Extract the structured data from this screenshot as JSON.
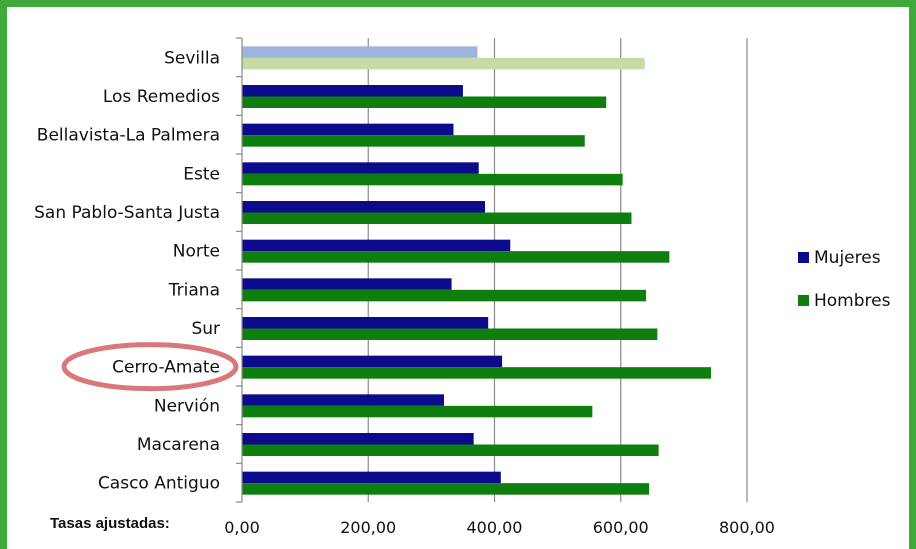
{
  "chart_data": {
    "type": "bar",
    "orientation": "horizontal",
    "categories": [
      "Sevilla",
      "Los Remedios",
      "Bellavista-La Palmera",
      "Este",
      "San Pablo-Santa Justa",
      "Norte",
      "Triana",
      "Sur",
      "Cerro-Amate",
      "Nervión",
      "Macarena",
      "Casco Antiguo"
    ],
    "series": [
      {
        "name": "Mujeres",
        "color": "#0b0b8c",
        "values": [
          373,
          350,
          335,
          375,
          385,
          425,
          332,
          390,
          412,
          320,
          367,
          410
        ]
      },
      {
        "name": "Hombres",
        "color": "#0e7f0e",
        "values": [
          638,
          577,
          543,
          603,
          617,
          677,
          640,
          658,
          743,
          555,
          660,
          645
        ]
      }
    ],
    "highlight_first_category_colors": {
      "Mujeres": "#9db4dc",
      "Hombres": "#c6dba6"
    },
    "highlighted_category": "Cerro-Amate",
    "highlight_color": "#d9787a",
    "xlim": [
      0,
      800
    ],
    "xticks": [
      0,
      200,
      400,
      600,
      800
    ],
    "xtick_labels": [
      "0,00",
      "200,00",
      "400,00",
      "600,00",
      "800,00"
    ],
    "xlabel": "",
    "ylabel": "",
    "grid": true,
    "legend_position": "right"
  },
  "footer_label": "Tasas ajustadas:",
  "frame_color": "#3fa93c"
}
